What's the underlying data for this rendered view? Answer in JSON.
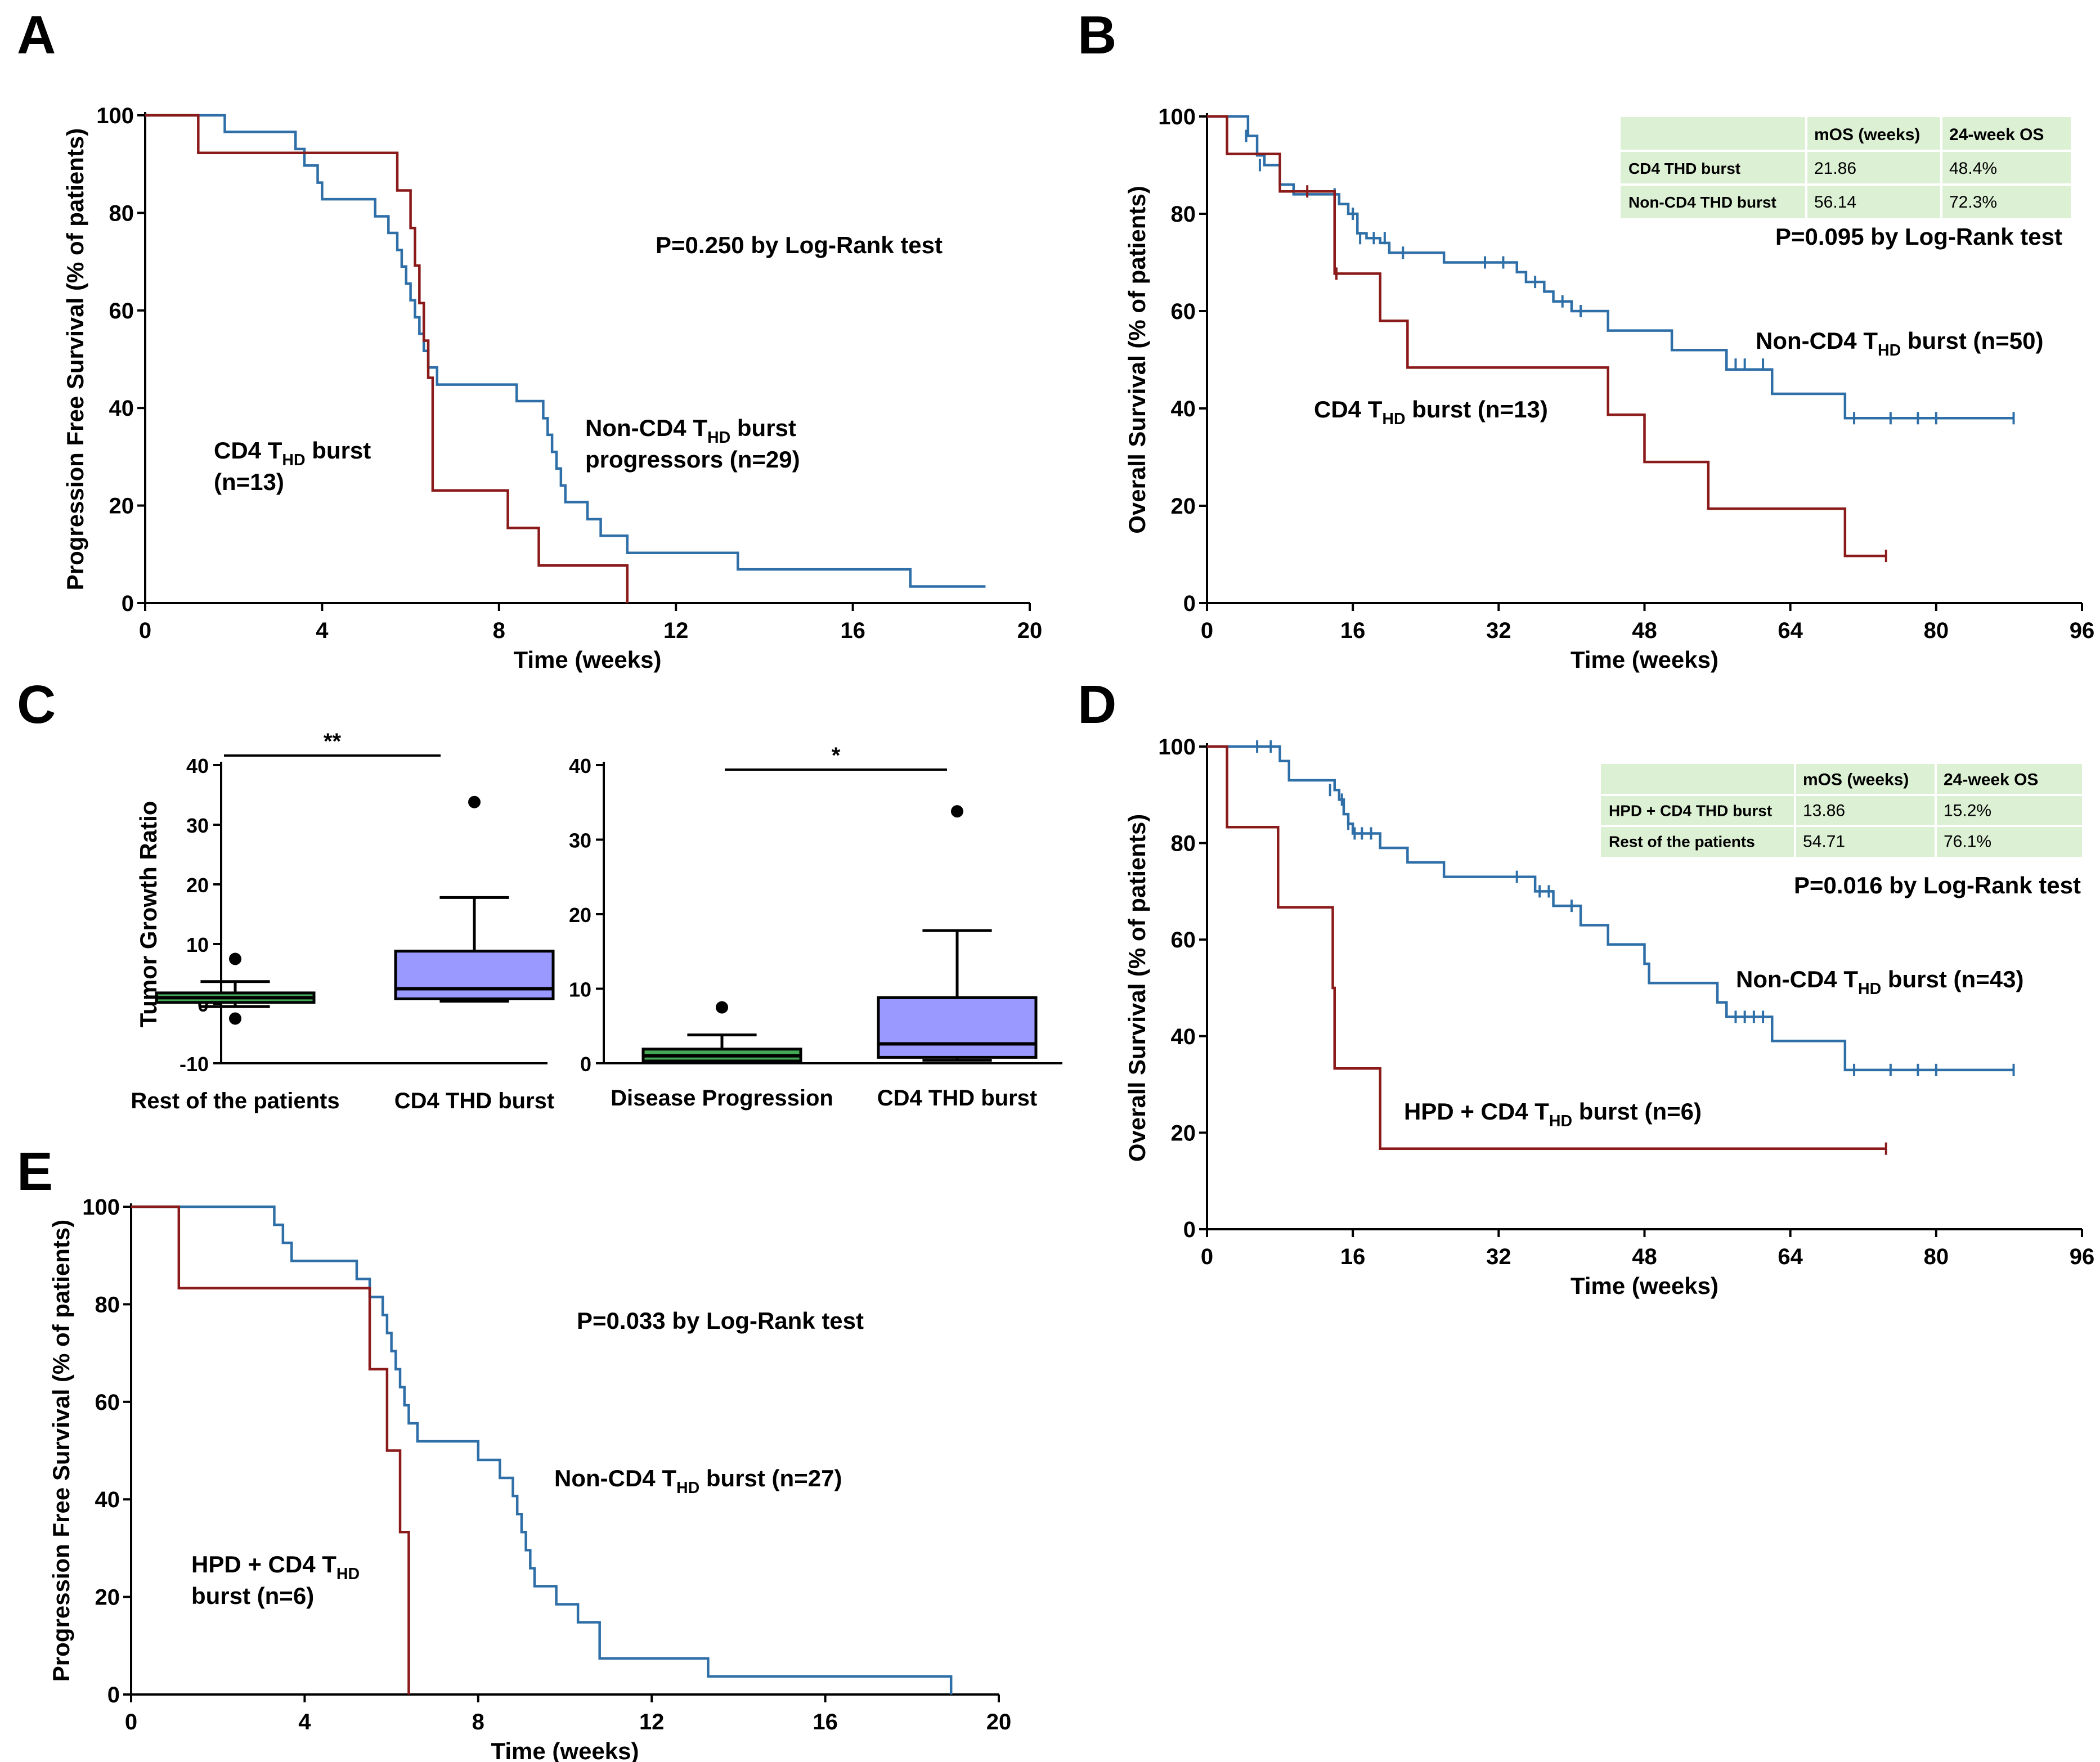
{
  "panel_letters": {
    "a": "A",
    "b": "B",
    "c": "C",
    "d": "D",
    "e": "E"
  },
  "colors": {
    "blue": "#2f6fa8",
    "red": "#8b1a1a",
    "box_fill": "#9999ff",
    "box_green": "#44aa55",
    "table_fill": "#dcf0d4"
  },
  "chart_data": [
    {
      "id": "A",
      "type": "line",
      "ylabel": "Progression Free Survival (% of patients)",
      "xlabel": "Time (weeks)",
      "xlim": [
        0,
        20
      ],
      "ylim": [
        0,
        100
      ],
      "xticks": [
        0,
        4,
        8,
        12,
        16,
        20
      ],
      "yticks": [
        0,
        20,
        40,
        60,
        80,
        100
      ],
      "pvalue": "P=0.250 by Log-Rank test",
      "series": [
        {
          "name": "Non-CD4 THD burst progressors (n=29)",
          "color_key": "blue",
          "label_line1_pre": "Non-CD4 T",
          "label_line1_sub": "HD",
          "label_line1_post": " burst",
          "label_line2": "progressors (n=29)",
          "steps": [
            [
              0,
              100
            ],
            [
              1.8,
              96.6
            ],
            [
              3.4,
              93.1
            ],
            [
              3.6,
              89.7
            ],
            [
              3.9,
              86.2
            ],
            [
              4.0,
              82.8
            ],
            [
              5.2,
              79.3
            ],
            [
              5.5,
              75.9
            ],
            [
              5.7,
              72.4
            ],
            [
              5.8,
              69.0
            ],
            [
              5.9,
              65.5
            ],
            [
              6.0,
              62.1
            ],
            [
              6.1,
              58.6
            ],
            [
              6.2,
              55.2
            ],
            [
              6.3,
              51.7
            ],
            [
              6.4,
              48.3
            ],
            [
              6.6,
              44.8
            ],
            [
              8.4,
              41.4
            ],
            [
              9.0,
              37.9
            ],
            [
              9.1,
              34.5
            ],
            [
              9.2,
              31.0
            ],
            [
              9.3,
              27.6
            ],
            [
              9.4,
              24.1
            ],
            [
              9.5,
              20.7
            ],
            [
              10.0,
              17.2
            ],
            [
              10.3,
              13.8
            ],
            [
              10.9,
              10.3
            ],
            [
              13.4,
              6.9
            ],
            [
              17.3,
              3.4
            ],
            [
              19.0,
              3.4
            ]
          ],
          "censored": []
        },
        {
          "name": "CD4 THD burst (n=13)",
          "color_key": "red",
          "label_line1_pre": "CD4 T",
          "label_line1_sub": "HD",
          "label_line1_post": " burst",
          "label_line2": "(n=13)",
          "steps": [
            [
              0,
              100
            ],
            [
              1.2,
              92.3
            ],
            [
              5.7,
              84.6
            ],
            [
              6.0,
              76.9
            ],
            [
              6.1,
              69.2
            ],
            [
              6.2,
              61.5
            ],
            [
              6.3,
              53.8
            ],
            [
              6.4,
              46.2
            ],
            [
              6.5,
              23.1
            ],
            [
              8.2,
              15.4
            ],
            [
              8.9,
              7.7
            ],
            [
              10.9,
              0
            ]
          ],
          "censored": []
        }
      ]
    },
    {
      "id": "B",
      "type": "line",
      "ylabel": "Overall Survival (% of patients)",
      "xlabel": "Time (weeks)",
      "xlim": [
        0,
        96
      ],
      "ylim": [
        0,
        100
      ],
      "xticks": [
        0,
        16,
        32,
        48,
        64,
        80,
        96
      ],
      "yticks": [
        0,
        20,
        40,
        60,
        80,
        100
      ],
      "pvalue": "P=0.095 by Log-Rank test",
      "table": {
        "headers": [
          "",
          "mOS (weeks)",
          "24-week OS"
        ],
        "rows": [
          {
            "group": "CD4 THD burst",
            "mos": "21.86",
            "os24": "48.4%"
          },
          {
            "group": "Non-CD4 THD burst",
            "mos": "56.14",
            "os24": "72.3%"
          }
        ]
      },
      "series": [
        {
          "name": "Non-CD4 THD burst (n=50)",
          "color_key": "blue",
          "label_line1_pre": "Non-CD4 T",
          "label_line1_sub": "HD",
          "label_line1_post": " burst (n=50)",
          "steps": [
            [
              0,
              100
            ],
            [
              4.5,
              96
            ],
            [
              5.5,
              92
            ],
            [
              6.3,
              90
            ],
            [
              8,
              86
            ],
            [
              9.5,
              84
            ],
            [
              14.5,
              82
            ],
            [
              15.5,
              80
            ],
            [
              16.5,
              76
            ],
            [
              17.5,
              75
            ],
            [
              19,
              74
            ],
            [
              20,
              72
            ],
            [
              24,
              72
            ],
            [
              26,
              70
            ],
            [
              34,
              68
            ],
            [
              35,
              66
            ],
            [
              37,
              64
            ],
            [
              38,
              62
            ],
            [
              40,
              60
            ],
            [
              44,
              56
            ],
            [
              51,
              52
            ],
            [
              57,
              48
            ],
            [
              62,
              43
            ],
            [
              70,
              38
            ],
            [
              88.5,
              38
            ]
          ],
          "censored": [
            [
              4.3,
              96
            ],
            [
              5.8,
              90
            ],
            [
              14,
              84
            ],
            [
              16,
              80
            ],
            [
              16.8,
              75
            ],
            [
              18.3,
              75
            ],
            [
              19.5,
              75
            ],
            [
              21.5,
              72
            ],
            [
              30.5,
              70
            ],
            [
              32.5,
              70
            ],
            [
              36,
              66
            ],
            [
              39,
              62
            ],
            [
              41,
              60
            ],
            [
              57,
              49
            ],
            [
              58,
              49
            ],
            [
              59,
              49
            ],
            [
              61,
              49
            ],
            [
              71,
              38
            ],
            [
              75,
              38
            ],
            [
              78,
              38
            ],
            [
              80,
              38
            ],
            [
              88.5,
              38
            ]
          ]
        },
        {
          "name": "CD4 THD burst (n=13)",
          "color_key": "red",
          "label_line1_pre": "CD4 T",
          "label_line1_sub": "HD",
          "label_line1_post": " burst  (n=13)",
          "steps": [
            [
              0,
              100
            ],
            [
              2.2,
              92.3
            ],
            [
              8,
              84.6
            ],
            [
              14,
              67.7
            ],
            [
              19,
              58
            ],
            [
              22,
              48.4
            ],
            [
              44,
              38.7
            ],
            [
              48,
              29
            ],
            [
              55,
              19.4
            ],
            [
              70,
              9.7
            ],
            [
              74.5,
              9.7
            ]
          ],
          "censored": [
            [
              11,
              84.6
            ],
            [
              14.2,
              67.7
            ],
            [
              74.5,
              9.7
            ]
          ]
        }
      ]
    },
    {
      "id": "C1",
      "type": "box",
      "ylabel": "Tumor Growth Ratio",
      "ylim": [
        -10,
        40
      ],
      "yticks": [
        -10,
        0,
        10,
        20,
        30,
        40
      ],
      "significance": "**",
      "boxes": [
        {
          "category": "Rest of the patients",
          "min": -0.5,
          "q1": 0.2,
          "median": 1.0,
          "q3": 1.8,
          "max": 3.7,
          "outliers": [
            7.5,
            -2.5
          ],
          "fill_key": "box_green"
        },
        {
          "category": "CD4 THD burst",
          "min": 0.4,
          "q1": 0.8,
          "median": 2.5,
          "q3": 8.8,
          "max": 17.8,
          "outliers": [
            33.8
          ],
          "fill_key": "box_fill"
        }
      ]
    },
    {
      "id": "C2",
      "type": "box",
      "ylabel": "",
      "ylim": [
        0,
        40
      ],
      "yticks": [
        0,
        10,
        20,
        30,
        40
      ],
      "significance": "*",
      "boxes": [
        {
          "category": "Disease Progression",
          "min": 0.2,
          "q1": 0.3,
          "median": 1.0,
          "q3": 1.9,
          "max": 3.8,
          "outliers": [
            7.5
          ],
          "fill_key": "box_green"
        },
        {
          "category": "CD4 THD burst",
          "min": 0.4,
          "q1": 0.8,
          "median": 2.6,
          "q3": 8.8,
          "max": 17.8,
          "outliers": [
            33.8
          ],
          "fill_key": "box_fill"
        }
      ]
    },
    {
      "id": "D",
      "type": "line",
      "ylabel": "Overall Survival (% of patients)",
      "xlabel": "Time (weeks)",
      "xlim": [
        0,
        96
      ],
      "ylim": [
        0,
        100
      ],
      "xticks": [
        0,
        16,
        32,
        48,
        64,
        80,
        96
      ],
      "yticks": [
        0,
        20,
        40,
        60,
        80,
        100
      ],
      "pvalue": "P=0.016 by Log-Rank test",
      "table": {
        "headers": [
          "",
          "mOS (weeks)",
          "24-week OS"
        ],
        "rows": [
          {
            "group": "HPD + CD4 THD burst",
            "mos": "13.86",
            "os24": "15.2%"
          },
          {
            "group": "Rest of the patients",
            "mos": "54.71",
            "os24": "76.1%"
          }
        ]
      },
      "series": [
        {
          "name": "Non-CD4 THD burst (n=43)",
          "color_key": "blue",
          "label_line1_pre": "Non-CD4 T",
          "label_line1_sub": "HD",
          "label_line1_post": " burst (n=43)",
          "steps": [
            [
              0,
              100
            ],
            [
              6.5,
              100
            ],
            [
              8,
              97
            ],
            [
              9,
              93
            ],
            [
              14,
              91
            ],
            [
              14.5,
              89
            ],
            [
              15,
              86
            ],
            [
              15.5,
              84
            ],
            [
              16,
              82
            ],
            [
              19,
              79
            ],
            [
              22,
              76
            ],
            [
              26,
              73
            ],
            [
              36,
              70
            ],
            [
              38,
              67
            ],
            [
              41,
              63
            ],
            [
              44,
              59
            ],
            [
              48,
              55
            ],
            [
              48.5,
              51
            ],
            [
              56,
              47
            ],
            [
              57,
              44
            ],
            [
              62,
              39
            ],
            [
              70,
              33
            ],
            [
              88.5,
              33
            ]
          ],
          "censored": [
            [
              5.5,
              100
            ],
            [
              7,
              100
            ],
            [
              13.5,
              91
            ],
            [
              14.8,
              89
            ],
            [
              15.5,
              84
            ],
            [
              16.2,
              82
            ],
            [
              17,
              82
            ],
            [
              18,
              82
            ],
            [
              34,
              73
            ],
            [
              36.5,
              70
            ],
            [
              37.5,
              70
            ],
            [
              40,
              67
            ],
            [
              58,
              44
            ],
            [
              59,
              44
            ],
            [
              60,
              44
            ],
            [
              61,
              44
            ],
            [
              71,
              33
            ],
            [
              75,
              33
            ],
            [
              78,
              33
            ],
            [
              80,
              33
            ],
            [
              88.5,
              33
            ]
          ]
        },
        {
          "name": "HPD + CD4 THD burst (n=6)",
          "color_key": "red",
          "label_line1_pre": "HPD + CD4 T",
          "label_line1_sub": "HD",
          "label_line1_post": " burst  (n=6)",
          "steps": [
            [
              0,
              100
            ],
            [
              2.2,
              83.3
            ],
            [
              7.8,
              66.7
            ],
            [
              13.8,
              50
            ],
            [
              14,
              33.3
            ],
            [
              19,
              16.7
            ],
            [
              74.5,
              16.7
            ]
          ],
          "censored": [
            [
              74.5,
              16.7
            ]
          ]
        }
      ]
    },
    {
      "id": "E",
      "type": "line",
      "ylabel": "Progression Free Survival (% of patients)",
      "xlabel": "Time (weeks)",
      "xlim": [
        0,
        20
      ],
      "ylim": [
        0,
        100
      ],
      "xticks": [
        0,
        4,
        8,
        12,
        16,
        20
      ],
      "yticks": [
        0,
        20,
        40,
        60,
        80,
        100
      ],
      "pvalue": "P=0.033 by Log-Rank test",
      "series": [
        {
          "name": "Non-CD4 THD burst (n=27)",
          "color_key": "blue",
          "label_line1_pre": "Non-CD4 T",
          "label_line1_sub": "HD",
          "label_line1_post": " burst (n=27)",
          "steps": [
            [
              0,
              100
            ],
            [
              3.1,
              100
            ],
            [
              3.3,
              96.3
            ],
            [
              3.5,
              92.6
            ],
            [
              3.7,
              88.9
            ],
            [
              5.2,
              85.2
            ],
            [
              5.5,
              81.5
            ],
            [
              5.8,
              77.8
            ],
            [
              5.9,
              74.1
            ],
            [
              6.0,
              70.4
            ],
            [
              6.1,
              66.7
            ],
            [
              6.2,
              63.0
            ],
            [
              6.3,
              59.3
            ],
            [
              6.4,
              55.6
            ],
            [
              6.6,
              51.9
            ],
            [
              8.0,
              48.1
            ],
            [
              8.5,
              44.4
            ],
            [
              8.8,
              40.7
            ],
            [
              8.9,
              37.0
            ],
            [
              9.0,
              33.3
            ],
            [
              9.1,
              29.6
            ],
            [
              9.2,
              25.9
            ],
            [
              9.3,
              22.2
            ],
            [
              9.8,
              18.5
            ],
            [
              10.3,
              14.8
            ],
            [
              10.8,
              7.4
            ],
            [
              13.3,
              3.7
            ],
            [
              18.9,
              3.7
            ],
            [
              18.9,
              0
            ]
          ],
          "censored": []
        },
        {
          "name": "HPD + CD4 THD burst (n=6)",
          "color_key": "red",
          "label_line1_pre": "HPD + CD4 T",
          "label_line1_sub": "HD",
          "label_line1_post": "",
          "label_line2": "burst  (n=6)",
          "steps": [
            [
              0,
              100
            ],
            [
              1.1,
              83.3
            ],
            [
              5.5,
              66.7
            ],
            [
              5.9,
              50
            ],
            [
              6.2,
              33.3
            ],
            [
              6.4,
              0
            ]
          ],
          "censored": []
        }
      ]
    }
  ]
}
